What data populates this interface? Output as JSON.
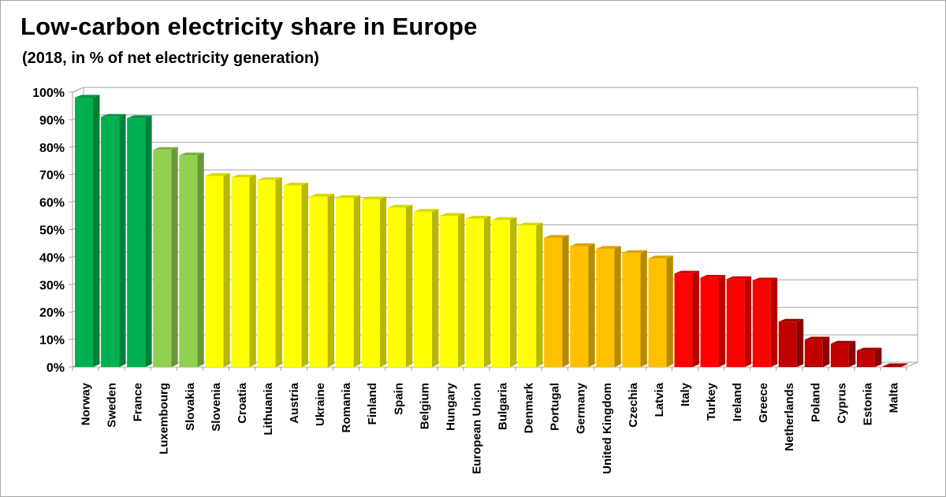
{
  "chart_data": {
    "type": "bar",
    "title": "Low-carbon electricity share in Europe",
    "subtitle": "(2018, in % of net electricity generation)",
    "xlabel": "",
    "ylabel": "",
    "ylim": [
      0,
      100
    ],
    "yticks": [
      0,
      10,
      20,
      30,
      40,
      50,
      60,
      70,
      80,
      90,
      100
    ],
    "ytick_labels": [
      "0%",
      "10%",
      "20%",
      "30%",
      "40%",
      "50%",
      "60%",
      "70%",
      "80%",
      "90%",
      "100%"
    ],
    "grid": true,
    "legend": "none",
    "categories": [
      "Norway",
      "Sweden",
      "France",
      "Luxembourg",
      "Slovakia",
      "Slovenia",
      "Croatia",
      "Lithuania",
      "Austria",
      "Ukraine",
      "Romania",
      "Finland",
      "Spain",
      "Belgium",
      "Hungary",
      "European Union",
      "Bulgaria",
      "Denmark",
      "Portugal",
      "Germany",
      "United Kingdom",
      "Czechia",
      "Latvia",
      "Italy",
      "Turkey",
      "Ireland",
      "Greece",
      "Netherlands",
      "Poland",
      "Cyprus",
      "Estonia",
      "Malta"
    ],
    "values": [
      98,
      91,
      90.5,
      79,
      77,
      69.5,
      69,
      68,
      66,
      62,
      61.5,
      61,
      58,
      56.5,
      55,
      54,
      53.5,
      51.5,
      47,
      44,
      43,
      41.5,
      39.5,
      34,
      32.5,
      32,
      31.5,
      16.5,
      10,
      8.5,
      6,
      0.3
    ],
    "bar_colors": [
      "#00b050",
      "#00b050",
      "#00b050",
      "#92d050",
      "#92d050",
      "#ffff00",
      "#ffff00",
      "#ffff00",
      "#ffff00",
      "#ffff00",
      "#ffff00",
      "#ffff00",
      "#ffff00",
      "#ffff00",
      "#ffff00",
      "#ffff00",
      "#ffff00",
      "#ffff00",
      "#ffc000",
      "#ffc000",
      "#ffc000",
      "#ffc000",
      "#ffc000",
      "#ff0000",
      "#ff0000",
      "#ff0000",
      "#ff0000",
      "#c00000",
      "#c00000",
      "#c00000",
      "#c00000",
      "#c00000"
    ]
  }
}
